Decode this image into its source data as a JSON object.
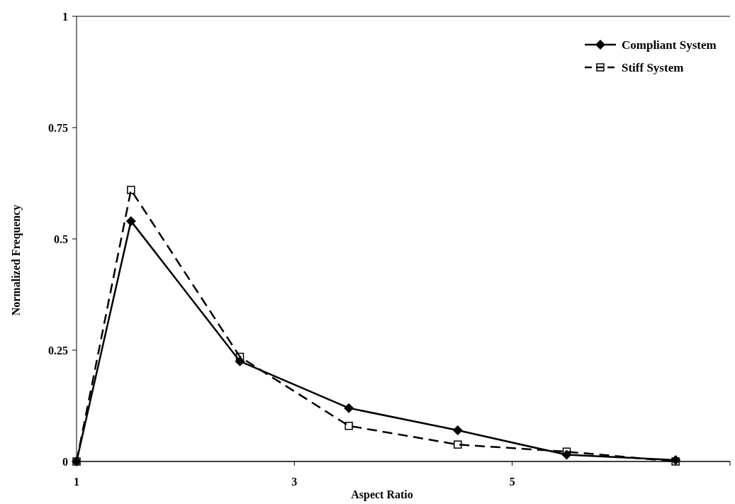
{
  "chart_data": {
    "type": "line",
    "xlabel": "Aspect Ratio",
    "ylabel": "Normalized Frequency",
    "x": [
      1,
      1.5,
      2.5,
      3.5,
      4.5,
      5.5,
      6.5
    ],
    "series": [
      {
        "name": "Compliant System",
        "color": "#000000",
        "marker": "diamond",
        "line_style": "solid",
        "values": [
          0,
          0.54,
          0.225,
          0.12,
          0.07,
          0.015,
          0.003
        ]
      },
      {
        "name": "Stiff System",
        "color": "#000000",
        "marker": "square",
        "line_style": "dashed",
        "values": [
          0,
          0.61,
          0.235,
          0.08,
          0.038,
          0.022,
          0
        ]
      }
    ],
    "xlim": [
      1,
      7
    ],
    "xticks": [
      1,
      3,
      5,
      {
        "value": 7,
        "label": null
      }
    ],
    "ylim": [
      0,
      1
    ],
    "yticks": [
      0,
      0.75,
      0.5,
      0.25,
      1
    ],
    "legend": "top right",
    "grid": false
  }
}
